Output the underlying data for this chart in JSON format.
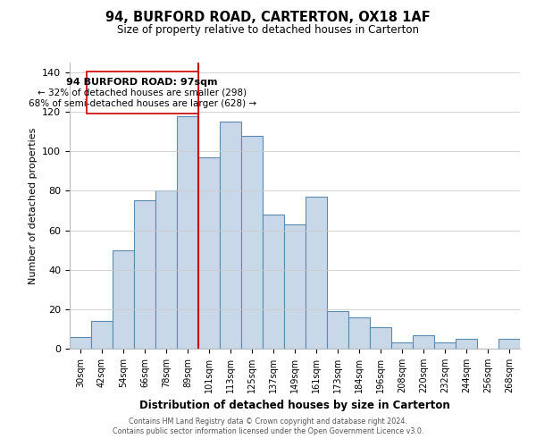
{
  "title": "94, BURFORD ROAD, CARTERTON, OX18 1AF",
  "subtitle": "Size of property relative to detached houses in Carterton",
  "xlabel": "Distribution of detached houses by size in Carterton",
  "ylabel": "Number of detached properties",
  "footer_line1": "Contains HM Land Registry data © Crown copyright and database right 2024.",
  "footer_line2": "Contains public sector information licensed under the Open Government Licence v3.0.",
  "bar_labels": [
    "30sqm",
    "42sqm",
    "54sqm",
    "66sqm",
    "78sqm",
    "89sqm",
    "101sqm",
    "113sqm",
    "125sqm",
    "137sqm",
    "149sqm",
    "161sqm",
    "173sqm",
    "184sqm",
    "196sqm",
    "208sqm",
    "220sqm",
    "232sqm",
    "244sqm",
    "256sqm",
    "268sqm"
  ],
  "bar_values": [
    6,
    14,
    50,
    75,
    80,
    118,
    97,
    115,
    108,
    68,
    63,
    77,
    19,
    16,
    11,
    3,
    7,
    3,
    5,
    0,
    5
  ],
  "bar_color": "#c8d8e8",
  "bar_edge_color": "#5a8ab0",
  "ylim": [
    0,
    145
  ],
  "yticks": [
    0,
    20,
    40,
    60,
    80,
    100,
    120,
    140
  ],
  "vline_color": "#cc0000",
  "annotation_title": "94 BURFORD ROAD: 97sqm",
  "annotation_line1": "← 32% of detached houses are smaller (298)",
  "annotation_line2": "68% of semi-detached houses are larger (628) →",
  "box_color": "#ffffff",
  "box_edge_color": "#cc0000",
  "background_color": "#ffffff"
}
